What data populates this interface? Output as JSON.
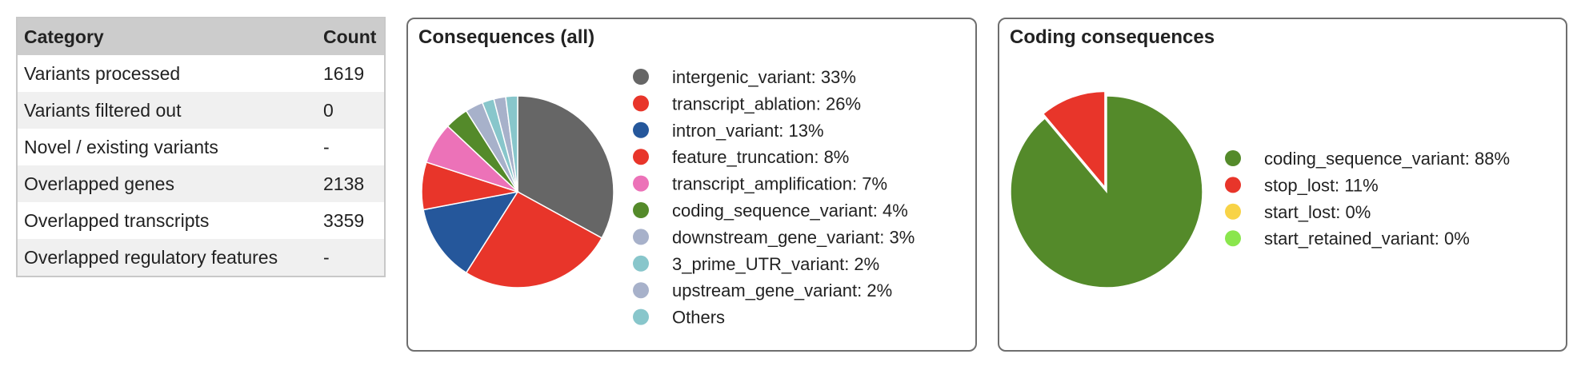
{
  "stats_table": {
    "headers": {
      "category": "Category",
      "count": "Count"
    },
    "rows": [
      {
        "category": "Variants processed",
        "count": "1619"
      },
      {
        "category": "Variants filtered out",
        "count": "0"
      },
      {
        "category": "Novel / existing variants",
        "count": "-"
      },
      {
        "category": "Overlapped genes",
        "count": "2138"
      },
      {
        "category": "Overlapped transcripts",
        "count": "3359"
      },
      {
        "category": "Overlapped regulatory features",
        "count": "-"
      }
    ]
  },
  "chart_data": [
    {
      "type": "pie",
      "title": "Consequences (all)",
      "legend_position": "right",
      "slices": [
        {
          "label": "intergenic_variant: 33%",
          "value": 33,
          "color": "#666666"
        },
        {
          "label": "transcript_ablation: 26%",
          "value": 26,
          "color": "#e8352a"
        },
        {
          "label": "intron_variant: 13%",
          "value": 13,
          "color": "#25579b"
        },
        {
          "label": "feature_truncation: 8%",
          "value": 8,
          "color": "#e8352a"
        },
        {
          "label": "transcript_amplification: 7%",
          "value": 7,
          "color": "#ec72b8"
        },
        {
          "label": "coding_sequence_variant: 4%",
          "value": 4,
          "color": "#548a2a"
        },
        {
          "label": "downstream_gene_variant: 3%",
          "value": 3,
          "color": "#a7b1ca"
        },
        {
          "label": "3_prime_UTR_variant: 2%",
          "value": 2,
          "color": "#88c6cb"
        },
        {
          "label": "upstream_gene_variant: 2%",
          "value": 2,
          "color": "#a7b1ca"
        },
        {
          "label": "Others",
          "value": 2,
          "color": "#88c6cb"
        }
      ]
    },
    {
      "type": "pie",
      "title": "Coding consequences",
      "legend_position": "right",
      "slices": [
        {
          "label": "coding_sequence_variant: 88%",
          "value": 88,
          "color": "#548a2a"
        },
        {
          "label": "stop_lost: 11%",
          "value": 11,
          "color": "#e8352a"
        },
        {
          "label": "start_lost: 0%",
          "value": 0,
          "color": "#f8d347"
        },
        {
          "label": "start_retained_variant: 0%",
          "value": 0,
          "color": "#8ae64d"
        }
      ]
    }
  ]
}
